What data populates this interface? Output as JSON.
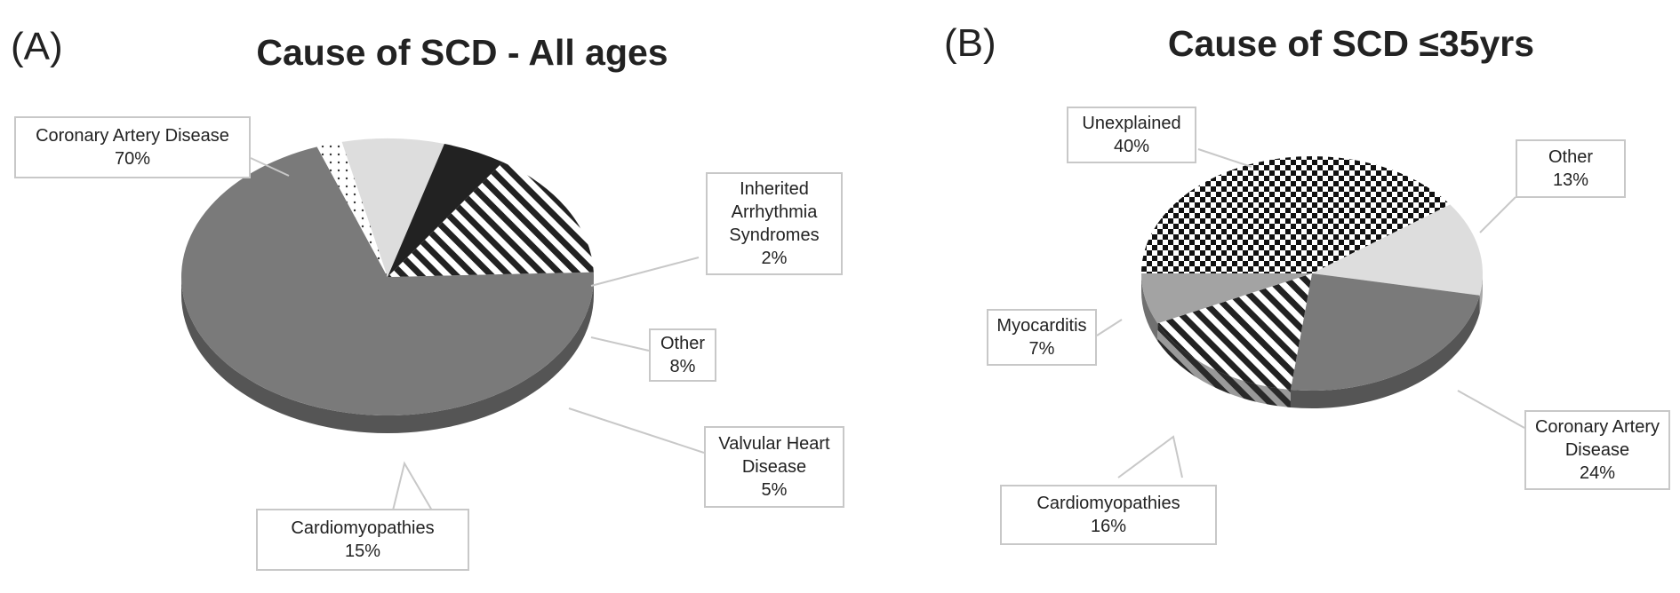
{
  "panels": [
    {
      "letter": "(A)",
      "title": "Cause of SCD - All ages"
    },
    {
      "letter": "(B)",
      "title": "Cause of SCD ≤35yrs"
    }
  ],
  "chart_data": [
    {
      "type": "pie",
      "title": "Cause of SCD - All ages",
      "slices": [
        {
          "label": "Coronary Artery Disease",
          "value": 70,
          "display": "70%",
          "pattern": "solid-dark-gray"
        },
        {
          "label": "Inherited Arrhythmia Syndromes",
          "value": 2,
          "display": "2%",
          "pattern": "dots"
        },
        {
          "label": "Other",
          "value": 8,
          "display": "8%",
          "pattern": "solid-light-gray"
        },
        {
          "label": "Valvular Heart Disease",
          "value": 5,
          "display": "5%",
          "pattern": "solid-black"
        },
        {
          "label": "Cardiomyopathies",
          "value": 15,
          "display": "15%",
          "pattern": "diagonal-stripes"
        }
      ]
    },
    {
      "type": "pie",
      "title": "Cause of SCD ≤35yrs",
      "slices": [
        {
          "label": "Unexplained",
          "value": 40,
          "display": "40%",
          "pattern": "checkerboard"
        },
        {
          "label": "Other",
          "value": 13,
          "display": "13%",
          "pattern": "solid-light-gray"
        },
        {
          "label": "Coronary Artery Disease",
          "value": 24,
          "display": "24%",
          "pattern": "solid-dark-gray"
        },
        {
          "label": "Cardiomyopathies",
          "value": 16,
          "display": "16%",
          "pattern": "diagonal-stripes"
        },
        {
          "label": "Myocarditis",
          "value": 7,
          "display": "7%",
          "pattern": "solid-mid-gray"
        }
      ]
    }
  ],
  "labels": {
    "a_cad": [
      "Coronary Artery Disease",
      "70%"
    ],
    "a_ias": [
      "Inherited",
      "Arrhythmia",
      "Syndromes",
      "2%"
    ],
    "a_other": [
      "Other",
      "8%"
    ],
    "a_valv": [
      "Valvular Heart",
      "Disease",
      "5%"
    ],
    "a_cardio": [
      "Cardiomyopathies",
      "15%"
    ],
    "b_unexpl": [
      "Unexplained",
      "40%"
    ],
    "b_other": [
      "Other",
      "13%"
    ],
    "b_myo": [
      "Myocarditis",
      "7%"
    ],
    "b_cad": [
      "Coronary Artery",
      "Disease",
      "24%"
    ],
    "b_cardio": [
      "Cardiomyopathies",
      "16%"
    ]
  },
  "colors": {
    "solid-dark-gray": "#7a7a7a",
    "solid-light-gray": "#dddddd",
    "solid-mid-gray": "#a3a3a3",
    "solid-black": "#222222",
    "border": "#c8c8c8"
  }
}
